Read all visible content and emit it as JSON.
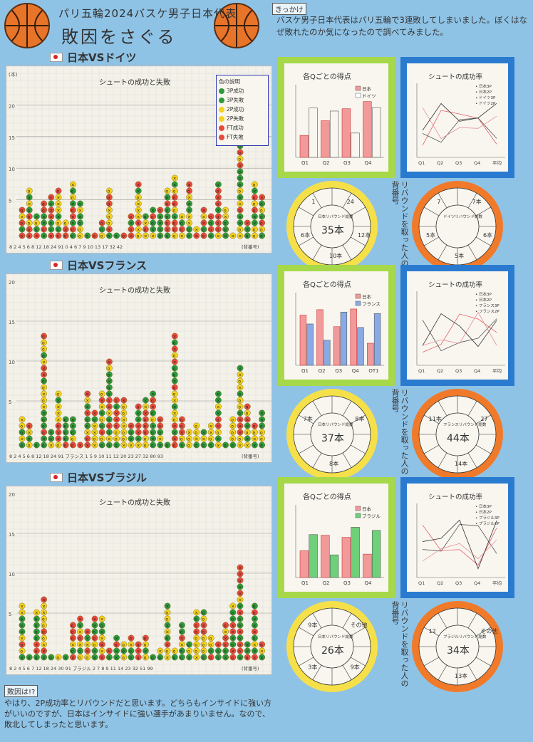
{
  "header": {
    "subtitle": "パリ五輪2024バスケ男子日本代表",
    "title": "敗因をさぐる",
    "kikkake_label": "きっかけ",
    "intro": "バスケ男子日本代表はパリ五輪で3連敗してしまいました。ぼくはなぜ敗れたのか気になったので調べてみました。"
  },
  "colors": {
    "background": "#8fc3e6",
    "accent_green": "#2e9a3c",
    "accent_red": "#e84a3c",
    "accent_yellow": "#f4d21e",
    "frame_green": "#a6d84a",
    "frame_blue": "#2a7bd0",
    "ring_yellow": "#f6e04a",
    "ring_orange": "#f07a2a"
  },
  "legend_items": [
    "色の説明",
    "3P成功",
    "3P失敗",
    "2P成功",
    "2P失敗",
    "FT成功",
    "FT失敗"
  ],
  "matches": [
    {
      "label": "日本VSドイツ",
      "shot_chart_title": "シュートの成功と失敗",
      "shot_axis_y": [
        "(本)",
        "20",
        "15",
        "10",
        "5"
      ],
      "shot_axis_x": "8 2 4 5 6 8 12 18 24 91 0 4 6 7 9 10 13 17 32 42",
      "shot_axis_x_note": "(背番号)",
      "side_labels": [
        "ドイツ"
      ],
      "q_chart": {
        "title": "各Qごとの得点",
        "legend": [
          "日本",
          "ドイツ"
        ],
        "categories": [
          "Q1",
          "Q2",
          "Q3",
          "Q4"
        ]
      },
      "pct_chart": {
        "title": "シュートの成功率",
        "legend": [
          "日本3P",
          "日本2P",
          "ドイツ3P",
          "ドイツ2P"
        ],
        "categories": [
          "Q1",
          "Q2",
          "Q3",
          "Q4",
          "平均"
        ]
      },
      "rebound_jp": {
        "center": "日本リバウンド総数",
        "total": "35本",
        "segments": [
          "24",
          "12本",
          "10本",
          "6本",
          "1"
        ]
      },
      "rebound_opp": {
        "center": "ドイツリバウンド総数",
        "segments": [
          "7本",
          "6本",
          "5本",
          "5本",
          "7"
        ]
      },
      "rebound_note": "リバウンドを取った人の背番号"
    },
    {
      "label": "日本VSフランス",
      "shot_chart_title": "シュートの成功と失敗",
      "shot_axis_y": [
        "20",
        "15",
        "10",
        "5"
      ],
      "shot_axis_x": "8 2 4 5 6 8 12 18 24 91 フランス 1 5 9 10 11 12 20 23 27 32 80 93",
      "shot_axis_x_note": "(背番号)",
      "side_labels": [
        "フランス"
      ],
      "q_chart": {
        "title": "各Qごとの得点",
        "legend": [
          "日本",
          "フランス"
        ],
        "categories": [
          "Q1",
          "Q2",
          "Q3",
          "Q4",
          "OT1"
        ]
      },
      "pct_chart": {
        "title": "シュートの成功率",
        "legend": [
          "日本3P",
          "日本2P",
          "フランス3P",
          "フランス2P"
        ],
        "categories": [
          "Q1",
          "Q2",
          "Q3",
          "Q4",
          "平均"
        ]
      },
      "rebound_jp": {
        "center": "日本リバウンド総数",
        "total": "37本",
        "segments": [
          "8本",
          "8本",
          "7本"
        ]
      },
      "rebound_opp": {
        "center": "フランスリバウンド総数",
        "total": "44本",
        "segments": [
          "27",
          "14本",
          "11本"
        ]
      },
      "rebound_note": "リバウンドを取った人の背番号"
    },
    {
      "label": "日本VSブラジル",
      "shot_chart_title": "シュートの成功と失敗",
      "shot_axis_y": [
        "20",
        "15",
        "10",
        "5"
      ],
      "shot_axis_x": "8 2 4 5 6 7 12 18 24 30 91 ブラジル 2 7 8 9 11 14 23 32 51 99",
      "shot_axis_x_note": "(背番号)",
      "side_labels": [
        "ブラジル"
      ],
      "q_chart": {
        "title": "各Qごとの得点",
        "legend": [
          "日本",
          "ブラジル"
        ],
        "categories": [
          "Q1",
          "Q2",
          "Q3",
          "Q4"
        ]
      },
      "pct_chart": {
        "title": "シュートの成功率",
        "legend": [
          "日本3P",
          "日本2P",
          "ブラジル3P",
          "ブラジル2P"
        ],
        "categories": [
          "Q1",
          "Q2",
          "Q3",
          "Q4",
          "平均"
        ]
      },
      "rebound_jp": {
        "center": "日本リバウンド総数",
        "total": "26本",
        "segments": [
          "その他",
          "9本",
          "3本",
          "9本"
        ]
      },
      "rebound_opp": {
        "center": "ブラジルリバウンド総数",
        "total": "34本",
        "segments": [
          "その他",
          "13本",
          "12"
        ]
      },
      "rebound_note": "リバウンドを取った人の背番号"
    }
  ],
  "conclusion": {
    "label": "敗因は!?",
    "text": "やはり、2P成功率とリバウンドだと思います。どちらもインサイドに強い方がいいのですが、日本はインサイドに強い選手があまりいません。なので、敗北してしまったと思います。"
  }
}
